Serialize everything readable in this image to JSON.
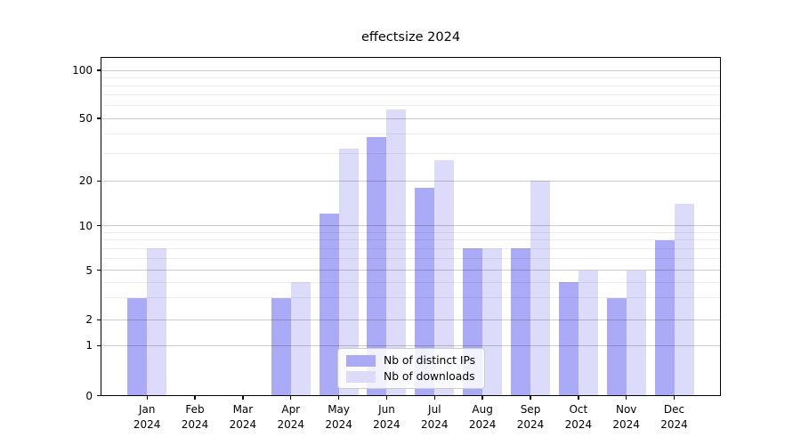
{
  "chart_data": {
    "type": "bar",
    "title": "effectsize 2024",
    "categories": [
      "Jan",
      "Feb",
      "Mar",
      "Apr",
      "May",
      "Jun",
      "Jul",
      "Aug",
      "Sep",
      "Oct",
      "Nov",
      "Dec"
    ],
    "year_label": "2024",
    "series": [
      {
        "name": "Nb of distinct IPs",
        "color": "#aaaaf7",
        "values": [
          3,
          0,
          0,
          3,
          12,
          38,
          18,
          7,
          7,
          4,
          3,
          8
        ]
      },
      {
        "name": "Nb of downloads",
        "color": "#dcdcfa",
        "values": [
          7,
          0,
          0,
          4,
          32,
          57,
          27,
          7,
          20,
          5,
          5,
          14
        ]
      }
    ],
    "y_axis": {
      "scale": "quasi-log (linear 0-1, log above)",
      "major_ticks": [
        0,
        1,
        2,
        5,
        10,
        20,
        50,
        100
      ],
      "minor_ticks": [
        3,
        4,
        6,
        7,
        8,
        9,
        30,
        40,
        60,
        70,
        80,
        90
      ],
      "ylim": [
        0,
        120
      ]
    },
    "grid": "horizontal major and minor lines",
    "legend": {
      "position": "lower center",
      "labels": [
        "Nb of distinct IPs",
        "Nb of downloads"
      ]
    }
  }
}
